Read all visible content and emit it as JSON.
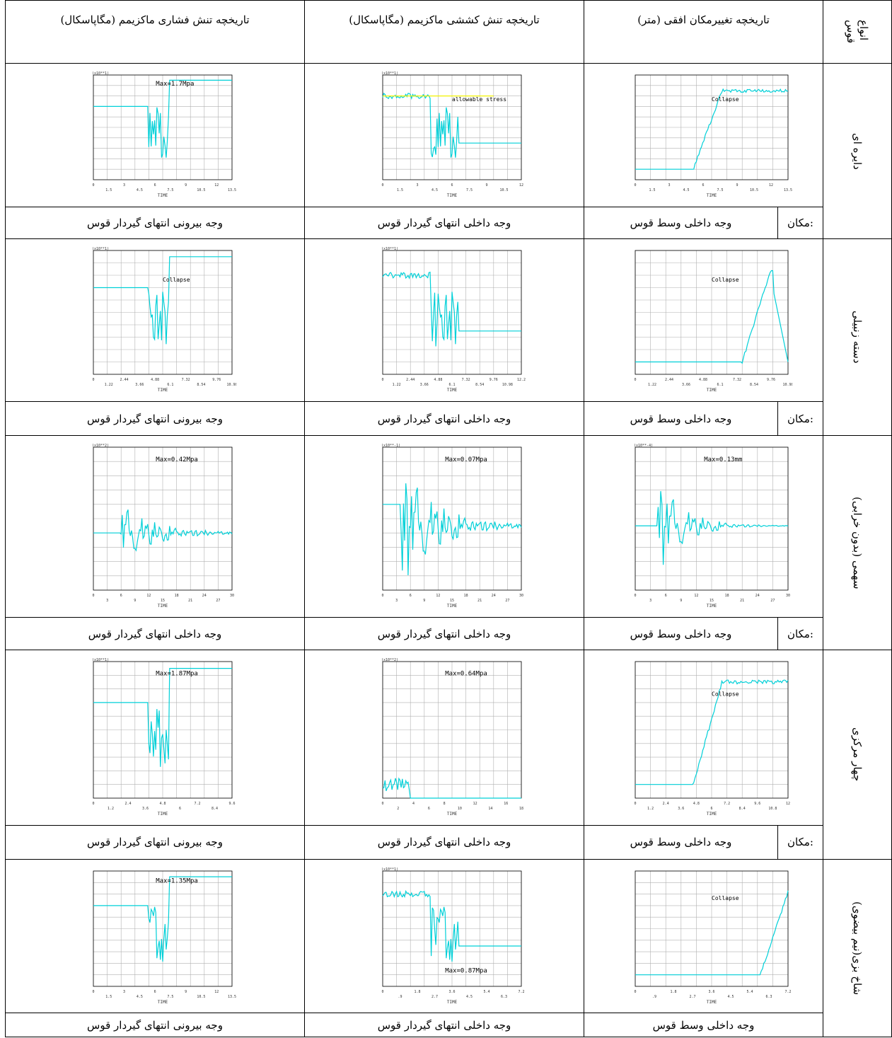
{
  "headers": {
    "type": "انواع قوس",
    "type_line1": "انواع",
    "type_line2": "قوس",
    "disp": "تاریخچه تغییرمکان افقی (متر)",
    "tens": "تاریخچه تنش کششی ماکزیمم (مگاپاسکال)",
    "comp": "تاریخچه تنش فشاری ماکزیمم (مگاپاسکال)"
  },
  "loc_label": "مکان:",
  "rows": [
    {
      "name": "دایره ای",
      "disp_loc": "وجه داخلی وسط قوس",
      "tens_loc": "وجه داخلی انتهای گیردار قوس",
      "comp_loc": "وجه بیرونی انتهای گیردار قوس",
      "disp_chart": {
        "xt": [
          "0",
          "1.5",
          "3",
          "4.5",
          "6",
          "7.5",
          "9",
          "10.5",
          "12",
          "13.5"
        ],
        "x2": "TIME",
        "exp": "",
        "note": "Collapse",
        "maxlabel": ""
      },
      "tens_chart": {
        "xt": [
          "0",
          "1.5",
          "3",
          "4.5",
          "6",
          "7.5",
          "9",
          "10.5",
          "12"
        ],
        "x2": "TIME",
        "exp": "(x10**1)",
        "note": "allowable stress",
        "maxlabel": ""
      },
      "comp_chart": {
        "xt": [
          "0",
          "1.5",
          "3",
          "4.5",
          "6",
          "7.5",
          "9",
          "10.5",
          "12",
          "13.5"
        ],
        "x2": "TIME",
        "exp": "(x10**1)",
        "note": "",
        "maxlabel": "Max=1.7Mpa"
      }
    },
    {
      "name": "دسته زنبیلی",
      "disp_loc": "وجه داخلی وسط قوس",
      "tens_loc": "وجه داخلی انتهای گیردار قوس",
      "comp_loc": "وجه بیرونی انتهای گیردار قوس",
      "disp_chart": {
        "xt": [
          "0",
          "1.22",
          "2.44",
          "3.66",
          "4.88",
          "6.1",
          "7.32",
          "8.54",
          "9.76",
          "10.98"
        ],
        "x2": "TIME",
        "exp": "",
        "note": "Collapse",
        "maxlabel": ""
      },
      "tens_chart": {
        "xt": [
          "0",
          "1.22",
          "2.44",
          "3.66",
          "4.88",
          "6.1",
          "7.32",
          "8.54",
          "9.76",
          "10.98",
          "12.2"
        ],
        "x2": "TIME",
        "exp": "(x10**1)",
        "note": "",
        "maxlabel": ""
      },
      "comp_chart": {
        "xt": [
          "0",
          "1.22",
          "2.44",
          "3.66",
          "4.88",
          "6.1",
          "7.32",
          "8.54",
          "9.76",
          "10.98"
        ],
        "x2": "TIME",
        "exp": "(x10**1)",
        "note": "Collapse",
        "maxlabel": ""
      }
    },
    {
      "name": "سهمی (بدون خرابی)",
      "disp_loc": "وجه داخلی وسط قوس",
      "tens_loc": "وجه داخلی انتهای گیردار قوس",
      "comp_loc": "وجه داخلی انتهای گیردار قوس",
      "disp_chart": {
        "xt": [
          "0",
          "3",
          "6",
          "9",
          "12",
          "15",
          "18",
          "21",
          "24",
          "27",
          "30"
        ],
        "x2": "TIME",
        "exp": "(x10**-4)",
        "note": "",
        "maxlabel": "Max=0.13mm"
      },
      "tens_chart": {
        "xt": [
          "0",
          "3",
          "6",
          "9",
          "12",
          "15",
          "18",
          "21",
          "24",
          "27",
          "30"
        ],
        "x2": "TIME",
        "exp": "(x10**-1)",
        "note": "",
        "maxlabel": "Max=0.07Mpa"
      },
      "comp_chart": {
        "xt": [
          "0",
          "3",
          "6",
          "9",
          "12",
          "15",
          "18",
          "21",
          "24",
          "27",
          "30"
        ],
        "x2": "TIME",
        "exp": "(x10**2)",
        "note": "",
        "maxlabel": "Max=0.42Mpa"
      }
    },
    {
      "name": "چهار مرکزی",
      "disp_loc": "وجه داخلی وسط قوس",
      "tens_loc": "وجه داخلی انتهای گیردار قوس",
      "comp_loc": "وجه بیرونی انتهای گیردار قوس",
      "disp_chart": {
        "xt": [
          "0",
          "1.2",
          "2.4",
          "3.6",
          "4.8",
          "6",
          "7.2",
          "8.4",
          "9.6",
          "10.8",
          "12"
        ],
        "x2": "TIME",
        "exp": "",
        "note": "Collapse",
        "maxlabel": ""
      },
      "tens_chart": {
        "xt": [
          "0",
          "2",
          "4",
          "6",
          "8",
          "10",
          "12",
          "14",
          "16",
          "18"
        ],
        "x2": "TIME",
        "exp": "(x10**2)",
        "note": "",
        "maxlabel": "Max=0.64Mpa"
      },
      "comp_chart": {
        "xt": [
          "0",
          "1.2",
          "2.4",
          "3.6",
          "4.8",
          "6",
          "7.2",
          "8.4",
          "9.6"
        ],
        "x2": "TIME",
        "exp": "(x10**1)",
        "note": "",
        "maxlabel": "Max=1.87Mpa"
      }
    },
    {
      "name": "شاخ بزی(نیم بیضوی)",
      "disp_loc": "وجه داخلی وسط قوس",
      "tens_loc": "وجه داخلی انتهای گیردار قوس",
      "comp_loc": "وجه بیرونی انتهای گیردار قوس",
      "disp_chart": {
        "xt": [
          "0",
          ".9",
          "1.8",
          "2.7",
          "3.6",
          "4.5",
          "5.4",
          "6.3",
          "7.2"
        ],
        "x2": "TIME",
        "exp": "",
        "note": "Collapse",
        "maxlabel": ""
      },
      "tens_chart": {
        "xt": [
          "0",
          ".9",
          "1.8",
          "2.7",
          "3.6",
          "4.5",
          "5.4",
          "6.3",
          "7.2"
        ],
        "x2": "TIME",
        "exp": "(x10**1)",
        "note": "",
        "maxlabel": "Max=0.87Mpa"
      },
      "comp_chart": {
        "xt": [
          "0",
          "1.5",
          "3",
          "4.5",
          "6",
          "7.5",
          "9",
          "10.5",
          "12",
          "13.5"
        ],
        "x2": "TIME",
        "exp": "",
        "note": "",
        "maxlabel": "Max=1.35Mpa"
      }
    }
  ],
  "chart_data": [
    {
      "type": "line",
      "row": 1,
      "col": "disp",
      "title": "",
      "xlabel": "TIME",
      "ylabel": "",
      "x": [
        0,
        1.5,
        3,
        4.5,
        5.4,
        6,
        7.5,
        9,
        10.5,
        12,
        13.5
      ],
      "series": [
        {
          "values": [
            0,
            0,
            0,
            0,
            0,
            1.6,
            2.4,
            2.5,
            2.6,
            2.7,
            2.6
          ]
        }
      ],
      "annotations": [
        "Collapse"
      ],
      "grid": true
    },
    {
      "type": "line",
      "row": 1,
      "col": "tens",
      "title": "",
      "xlabel": "TIME",
      "ylabel": "",
      "exp": "(x10**1)",
      "annotations": [
        "allowable stress"
      ],
      "grid": true
    },
    {
      "type": "line",
      "row": 1,
      "col": "comp",
      "title": "",
      "xlabel": "TIME",
      "ylabel": "",
      "exp": "(x10**1)",
      "annotations": [
        "Max=1.7Mpa"
      ],
      "grid": true
    },
    {
      "type": "line",
      "row": 2,
      "col": "disp",
      "xlabel": "TIME",
      "annotations": [
        "Collapse"
      ],
      "grid": true
    },
    {
      "type": "line",
      "row": 2,
      "col": "tens",
      "xlabel": "TIME",
      "exp": "(x10**1)",
      "grid": true
    },
    {
      "type": "line",
      "row": 2,
      "col": "comp",
      "xlabel": "TIME",
      "exp": "(x10**1)",
      "annotations": [
        "Collapse"
      ],
      "grid": true
    },
    {
      "type": "line",
      "row": 3,
      "col": "disp",
      "xlabel": "TIME",
      "exp": "(x10**-4)",
      "annotations": [
        "Max=0.13mm"
      ],
      "grid": true
    },
    {
      "type": "line",
      "row": 3,
      "col": "tens",
      "xlabel": "TIME",
      "exp": "(x10**-1)",
      "annotations": [
        "Max=0.07Mpa"
      ],
      "grid": true
    },
    {
      "type": "line",
      "row": 3,
      "col": "comp",
      "xlabel": "TIME",
      "exp": "(x10**2)",
      "annotations": [
        "Max=0.42Mpa"
      ],
      "grid": true
    },
    {
      "type": "line",
      "row": 4,
      "col": "disp",
      "xlabel": "TIME",
      "annotations": [
        "Collapse"
      ],
      "grid": true
    },
    {
      "type": "line",
      "row": 4,
      "col": "tens",
      "xlabel": "TIME",
      "exp": "(x10**2)",
      "annotations": [
        "Max=0.64Mpa"
      ],
      "grid": true
    },
    {
      "type": "line",
      "row": 4,
      "col": "comp",
      "xlabel": "TIME",
      "exp": "(x10**1)",
      "annotations": [
        "Max=1.87Mpa"
      ],
      "grid": true
    },
    {
      "type": "line",
      "row": 5,
      "col": "disp",
      "xlabel": "TIME",
      "annotations": [
        "Collapse"
      ],
      "grid": true
    },
    {
      "type": "line",
      "row": 5,
      "col": "tens",
      "xlabel": "TIME",
      "exp": "(x10**1)",
      "annotations": [
        "Max=0.87Mpa"
      ],
      "grid": true
    },
    {
      "type": "line",
      "row": 5,
      "col": "comp",
      "xlabel": "TIME",
      "annotations": [
        "Max=1.35Mpa"
      ],
      "grid": true
    }
  ],
  "colors": {
    "curve": "#00d0d8",
    "grid": "#b0b0b0",
    "axis": "#000000",
    "highlight": "#f2f200"
  }
}
